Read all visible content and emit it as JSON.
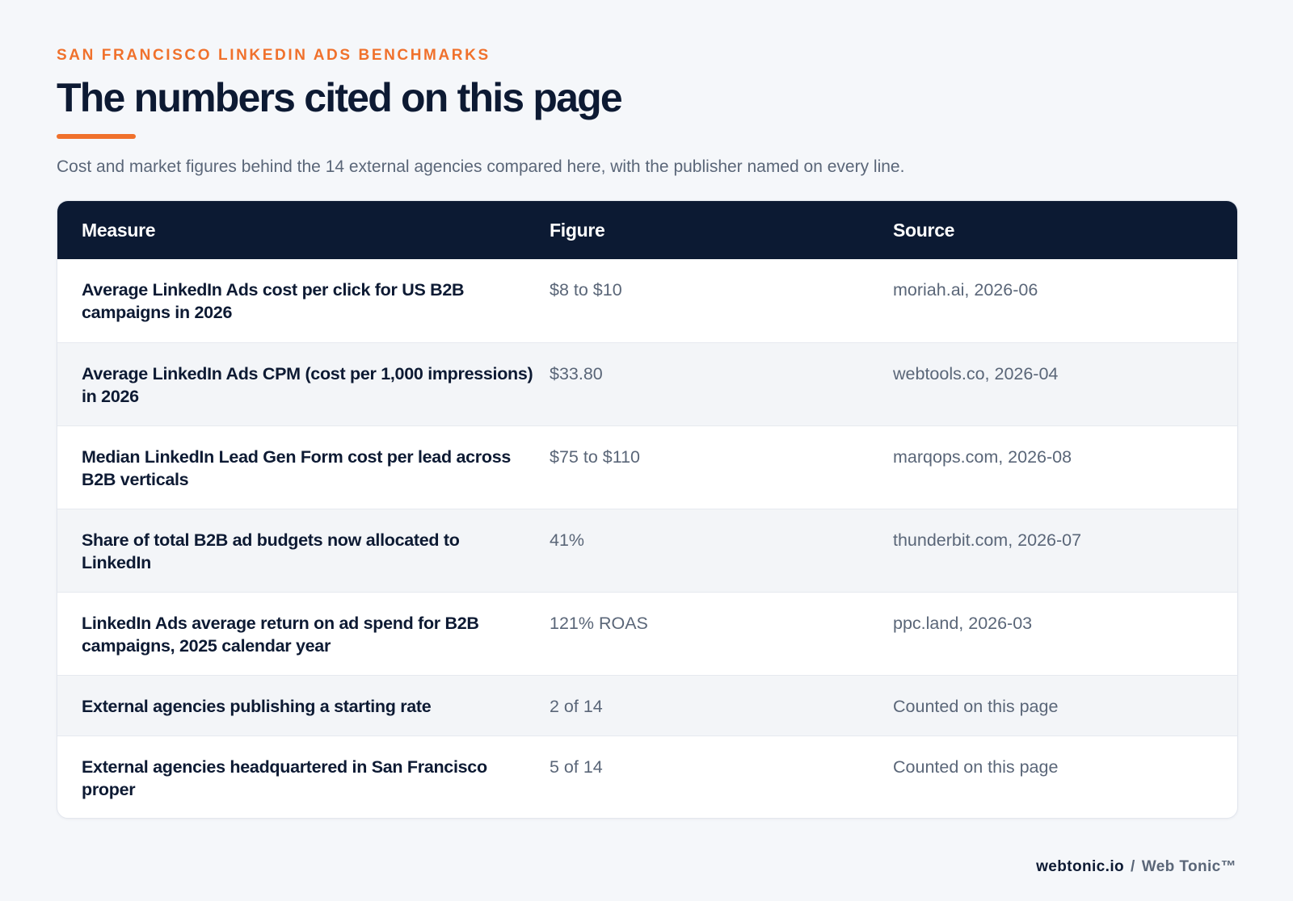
{
  "header": {
    "eyebrow": "SAN FRANCISCO LINKEDIN ADS BENCHMARKS",
    "title": "The numbers cited on this page",
    "subtitle": "Cost and market figures behind the 14 external agencies compared here, with the publisher named on every line."
  },
  "table": {
    "columns": [
      "Measure",
      "Figure",
      "Source"
    ],
    "rows": [
      {
        "measure": "Average LinkedIn Ads cost per click for US B2B campaigns in 2026",
        "figure": "$8 to $10",
        "source": "moriah.ai, 2026-06"
      },
      {
        "measure": "Average LinkedIn Ads CPM (cost per 1,000 impressions) in 2026",
        "figure": "$33.80",
        "source": "webtools.co, 2026-04"
      },
      {
        "measure": "Median LinkedIn Lead Gen Form cost per lead across B2B verticals",
        "figure": "$75 to $110",
        "source": "marqops.com, 2026-08"
      },
      {
        "measure": "Share of total B2B ad budgets now allocated to LinkedIn",
        "figure": "41%",
        "source": "thunderbit.com, 2026-07"
      },
      {
        "measure": "LinkedIn Ads average return on ad spend for B2B campaigns, 2025 calendar year",
        "figure": "121% ROAS",
        "source": "ppc.land, 2026-03"
      },
      {
        "measure": "External agencies publishing a starting rate",
        "figure": "2 of 14",
        "source": "Counted on this page"
      },
      {
        "measure": "External agencies headquartered in San Francisco proper",
        "figure": "5 of 14",
        "source": "Counted on this page"
      }
    ]
  },
  "footer": {
    "domain": "webtonic.io",
    "separator": "/",
    "brand": "Web Tonic™"
  },
  "colors": {
    "accent": "#f0712c",
    "header_bg": "#0c1a33",
    "page_bg": "#f5f7fa"
  }
}
